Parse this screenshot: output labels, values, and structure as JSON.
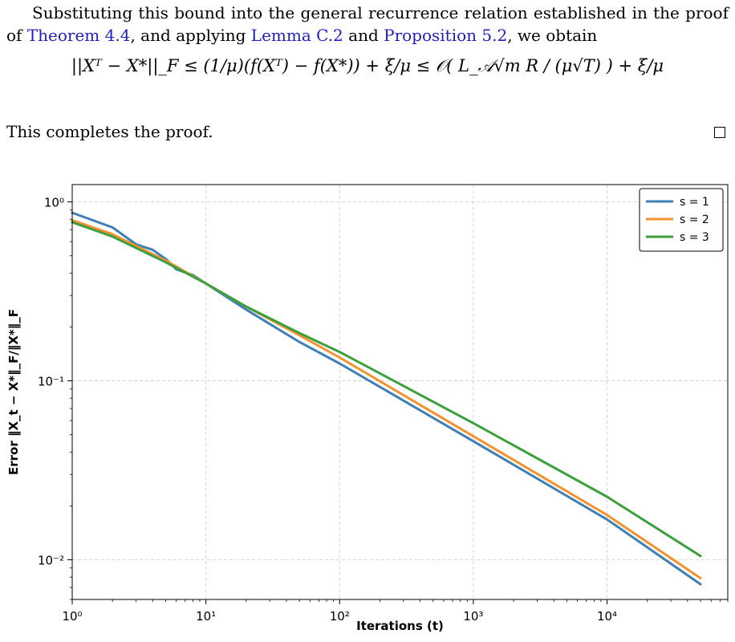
{
  "text": {
    "p1_before": "Substituting this bound into the general recurrence relation established in the proof of ",
    "theorem_ref": "Theorem 4.4",
    "p1_mid1": ", and applying ",
    "lemma_ref": "Lemma C.2",
    "p1_mid2": " and ",
    "prop_ref": "Proposition 5.2",
    "p1_after": ", we obtain",
    "equation": "||Xᵀ − X*||_F ≤ (1/μ)(f(Xᵀ) − f(X*)) + ξ/μ ≤ 𝒪( L_𝒜√m R / (μ√T) ) + ξ/μ",
    "p2": "This completes the proof."
  },
  "chart_data": {
    "type": "line",
    "xscale": "log",
    "yscale": "log",
    "xlabel": "Iterations (t)",
    "ylabel": "Error ‖X_t − X*‖_F/‖X*‖_F",
    "xlim": [
      1,
      80000
    ],
    "ylim": [
      0.006,
      1.25
    ],
    "xticks": [
      1,
      10,
      100,
      1000,
      10000
    ],
    "xtick_labels": [
      "10⁰",
      "10¹",
      "10²",
      "10³",
      "10⁴"
    ],
    "yticks": [
      0.01,
      0.1,
      1
    ],
    "ytick_labels": [
      "10⁻²",
      "10⁻¹",
      "10⁰"
    ],
    "grid": true,
    "legend_placement": "top-right",
    "series": [
      {
        "name": "s = 1",
        "color": "#3f7fb5",
        "x": [
          1,
          2,
          3,
          4,
          5,
          6,
          8,
          10,
          20,
          50,
          100,
          1000,
          10000,
          50000
        ],
        "y": [
          0.87,
          0.72,
          0.58,
          0.54,
          0.48,
          0.42,
          0.39,
          0.35,
          0.25,
          0.165,
          0.125,
          0.046,
          0.0168,
          0.0073
        ]
      },
      {
        "name": "s = 2",
        "color": "#f5912e",
        "x": [
          1,
          2,
          5,
          10,
          20,
          50,
          100,
          1000,
          10000,
          50000
        ],
        "y": [
          0.79,
          0.66,
          0.47,
          0.35,
          0.26,
          0.18,
          0.135,
          0.049,
          0.0178,
          0.0079
        ]
      },
      {
        "name": "s = 3",
        "color": "#3ca03c",
        "x": [
          1,
          2,
          5,
          10,
          20,
          50,
          100,
          1000,
          10000,
          50000
        ],
        "y": [
          0.77,
          0.64,
          0.46,
          0.35,
          0.26,
          0.185,
          0.145,
          0.058,
          0.0225,
          0.0105
        ]
      }
    ]
  }
}
